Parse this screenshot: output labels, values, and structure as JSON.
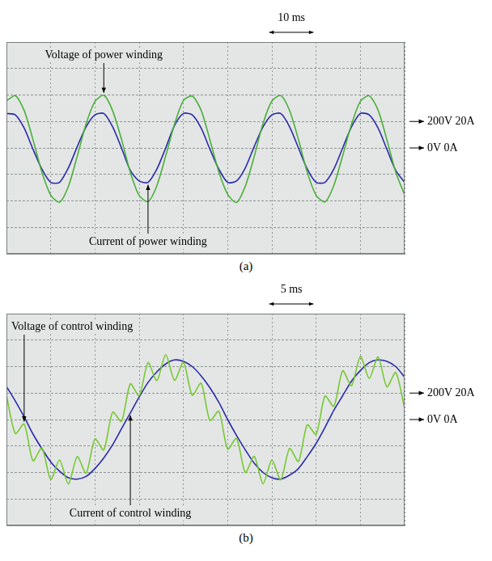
{
  "chart_data": [
    {
      "type": "line",
      "title": "(a)",
      "x": [
        0,
        2,
        4,
        6,
        8,
        10,
        12,
        14,
        16,
        18,
        20,
        22,
        24,
        26,
        28,
        30,
        32,
        34,
        36,
        38,
        40,
        42,
        44,
        46,
        48,
        50,
        52,
        54,
        56,
        58,
        60,
        62,
        64,
        66,
        68,
        70,
        72,
        74,
        76,
        78,
        80,
        82,
        84,
        86,
        88,
        90
      ],
      "xlim": [
        0,
        90
      ],
      "xticks": [
        0,
        10,
        20,
        30,
        40,
        50,
        60,
        70,
        80,
        90
      ],
      "ylim": [
        -800,
        800
      ],
      "yticks": [
        -800,
        -600,
        -400,
        -200,
        0,
        200,
        400,
        600,
        800
      ],
      "y2lim": [
        -80,
        80
      ],
      "y2ticks": [
        -80,
        -60,
        -40,
        -20,
        0,
        20,
        40,
        60,
        80
      ],
      "grid": true,
      "tick_labels": false,
      "scale_bar": {
        "label": "10 ms",
        "length": 10
      },
      "level_markers": [
        {
          "label": "200V 20A",
          "y": 200
        },
        {
          "label": "0V 0A",
          "y": 0
        }
      ],
      "series": [
        {
          "name": "Voltage of power winding",
          "color": "#4caf3a",
          "axis": "y",
          "values": [
            356,
            395,
            283,
            62,
            -182,
            -356,
            -410,
            -290,
            -62,
            182,
            350,
            398,
            280,
            65,
            -185,
            -360,
            -405,
            -285,
            -60,
            180,
            358,
            392,
            285,
            60,
            -180,
            -350,
            -412,
            -288,
            -65,
            185,
            354,
            396,
            282,
            64,
            -184,
            -358,
            -408,
            -284,
            -58,
            178,
            352,
            394,
            286,
            61,
            -183,
            -355
          ]
        },
        {
          "name": "Current of power winding",
          "color": "#2a2aa8",
          "axis": "y2",
          "values": [
            26,
            25,
            15,
            -1,
            -16,
            -26,
            -26,
            -15,
            1,
            16,
            25,
            26,
            16,
            0,
            -17,
            -25,
            -26,
            -16,
            0,
            17,
            26,
            25,
            15,
            -1,
            -16,
            -26,
            -25,
            -15,
            1,
            16,
            25,
            26,
            16,
            0,
            -16,
            -26,
            -26,
            -16,
            0,
            16,
            26,
            25,
            15,
            -1,
            -17,
            -26
          ]
        }
      ]
    },
    {
      "type": "line",
      "title": "(b)",
      "x": [
        0,
        1,
        2,
        3,
        4,
        5,
        6,
        7,
        8,
        9,
        10,
        11,
        12,
        13,
        14,
        15,
        16,
        17,
        18,
        19,
        20,
        21,
        22,
        23,
        24,
        25,
        26,
        27,
        28,
        29,
        30,
        31,
        32,
        33,
        34,
        35,
        36,
        37,
        38,
        39,
        40,
        41,
        42,
        43,
        44,
        45
      ],
      "xlim": [
        0,
        45
      ],
      "xticks": [
        0,
        5,
        10,
        15,
        20,
        25,
        30,
        35,
        40,
        45
      ],
      "ylim": [
        -800,
        800
      ],
      "yticks": [
        -800,
        -600,
        -400,
        -200,
        0,
        200,
        400,
        600,
        800
      ],
      "y2lim": [
        -80,
        80
      ],
      "y2ticks": [
        -80,
        -60,
        -40,
        -20,
        0,
        20,
        40,
        60,
        80
      ],
      "grid": true,
      "tick_labels": false,
      "scale_bar": {
        "label": "5 ms",
        "length": 5
      },
      "level_markers": [
        {
          "label": "200V 20A",
          "y": 200
        },
        {
          "label": "0V 0A",
          "y": 0
        }
      ],
      "series": [
        {
          "name": "Voltage of control winding",
          "color": "#78c832",
          "axis": "y",
          "values": [
            183,
            -106,
            -34,
            -312,
            -214,
            -453,
            -305,
            -487,
            -280,
            -405,
            -146,
            -230,
            56,
            -14,
            270,
            180,
            430,
            294,
            490,
            296,
            433,
            184,
            275,
            -8,
            63,
            -224,
            -142,
            -401,
            -278,
            -486,
            -306,
            -456,
            -218,
            -317,
            -40,
            -112,
            177,
            100,
            368,
            255,
            477,
            310,
            473,
            247,
            356,
            85
          ]
        },
        {
          "name": "Current of control winding",
          "color": "#2a2aa8",
          "axis": "y2",
          "values": [
            25,
            14,
            2,
            -11,
            -22,
            -32,
            -39,
            -44,
            -45,
            -43,
            -37,
            -29,
            -19,
            -7,
            5,
            17,
            28,
            36,
            42,
            45,
            44,
            40,
            33,
            24,
            13,
            0,
            -12,
            -23,
            -33,
            -40,
            -44,
            -45,
            -42,
            -37,
            -28,
            -18,
            -6,
            7,
            18,
            29,
            37,
            43,
            45,
            44,
            40,
            32
          ]
        }
      ]
    }
  ]
}
